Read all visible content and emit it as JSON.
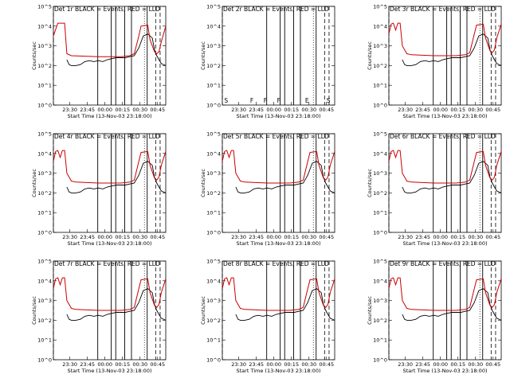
{
  "chart_data": {
    "type": "line",
    "layout": "3x3 grid of panels",
    "y_scale": "log",
    "ylim": [
      1,
      100000
    ],
    "y_ticks": [
      "10^0",
      "10^1",
      "10^2",
      "10^3",
      "10^4",
      "10^5"
    ],
    "x_ticks": [
      "23:30",
      "23:45",
      "00:00",
      "00:15",
      "00:30",
      "00:45"
    ],
    "xlabel": "Start Time (13-Nov-03 23:18:00)",
    "ylabel": "Counts/sec",
    "ylabel_alt": "Counts/sec",
    "series_colors": {
      "events": "#000000",
      "lld": "#cc0000"
    },
    "marker_letters": [
      "S",
      "F",
      "F",
      "F",
      "E",
      "S"
    ],
    "panels": [
      {
        "title": "Det 1r BLACK = Events, RED = LLD",
        "red_shape": "high",
        "show_markers": false
      },
      {
        "title": "Det 2r BLACK = Events, RED = LLD",
        "red_shape": "none",
        "show_markers": true
      },
      {
        "title": "Det 3r BLACK = Events, RED = LLD",
        "red_shape": "dip",
        "show_markers": false
      },
      {
        "title": "Det 4r BLACK = Events, RED = LLD",
        "red_shape": "dip",
        "show_markers": false
      },
      {
        "title": "Det 5r BLACK = Events, RED = LLD",
        "red_shape": "dip",
        "show_markers": false
      },
      {
        "title": "Det 6r BLACK = Events, RED = LLD",
        "red_shape": "dip",
        "show_markers": false
      },
      {
        "title": "Det 7r BLACK = Events, RED = LLD",
        "red_shape": "dip",
        "show_markers": false
      },
      {
        "title": "Det 8r BLACK = Events, RED = LLD",
        "red_shape": "dip",
        "show_markers": false
      },
      {
        "title": "Det 9r BLACK = Events, RED = LLD",
        "red_shape": "dip",
        "show_markers": false
      }
    ]
  }
}
